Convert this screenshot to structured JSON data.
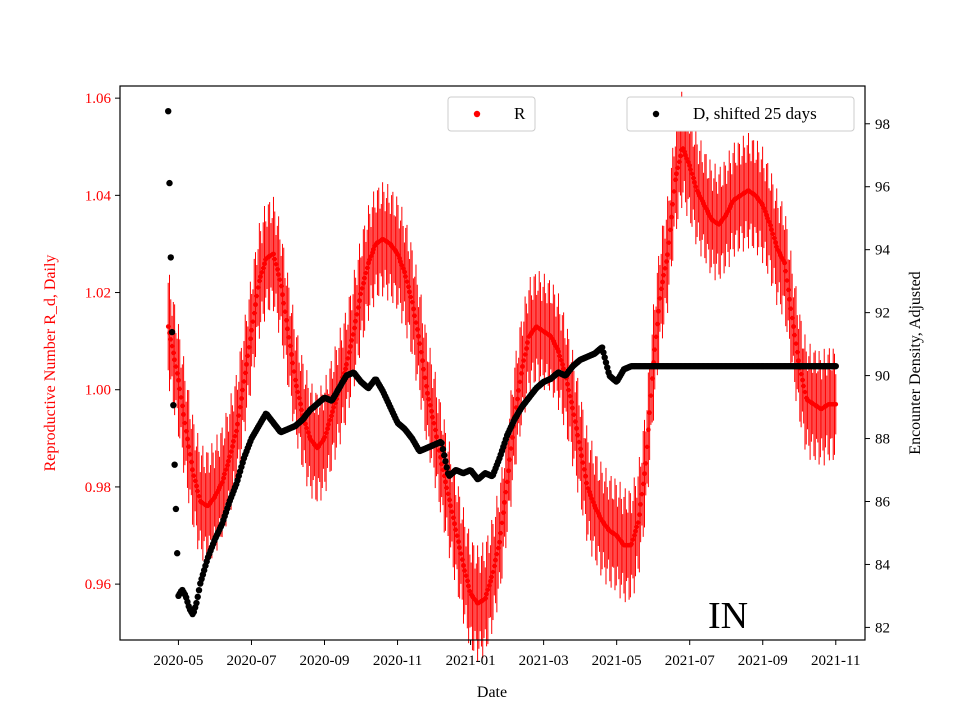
{
  "chart_data": {
    "type": "line",
    "title": "",
    "xlabel": "Date",
    "ylabel_left": "Reproductive Number R_d, Daily",
    "ylabel_right": "Encounter Density, Adjusted",
    "x_ticks": [
      "2020-05",
      "2020-07",
      "2020-09",
      "2020-11",
      "2021-01",
      "2021-03",
      "2021-05",
      "2021-07",
      "2021-09",
      "2021-11"
    ],
    "x_tick_months": [
      1,
      3,
      5,
      7,
      9,
      11,
      13,
      15,
      17,
      19
    ],
    "x_range_months": [
      -0.6,
      19.8
    ],
    "ylim_left": [
      0.9485,
      1.0625
    ],
    "yticks_left": [
      "0.96",
      "0.98",
      "1.00",
      "1.02",
      "1.04",
      "1.06"
    ],
    "ylim_right": [
      81.6,
      99.2
    ],
    "yticks_right": [
      "82",
      "84",
      "86",
      "88",
      "90",
      "92",
      "94",
      "96",
      "98"
    ],
    "legend": [
      {
        "label": "R",
        "color": "#ff0000",
        "position": "top-center"
      },
      {
        "label": "D, shifted 25 days",
        "color": "#000000",
        "position": "top-right"
      }
    ],
    "annotation": "IN",
    "colors": {
      "R": "#ff0000",
      "D": "#000000",
      "left_axis": "#ff0000"
    },
    "series": [
      {
        "name": "R",
        "axis": "left",
        "marker": "dot",
        "error_bar_halfwidth": 0.012,
        "x_months": [
          0.72,
          0.8,
          1.0,
          1.2,
          1.4,
          1.6,
          1.8,
          2.0,
          2.2,
          2.4,
          2.6,
          2.8,
          3.0,
          3.2,
          3.4,
          3.6,
          3.8,
          4.0,
          4.2,
          4.4,
          4.6,
          4.8,
          5.0,
          5.2,
          5.4,
          5.6,
          5.8,
          6.0,
          6.2,
          6.4,
          6.6,
          6.8,
          7.0,
          7.2,
          7.4,
          7.6,
          7.8,
          8.0,
          8.2,
          8.4,
          8.6,
          8.8,
          9.0,
          9.2,
          9.4,
          9.6,
          9.8,
          10.0,
          10.2,
          10.4,
          10.6,
          10.8,
          11.0,
          11.2,
          11.4,
          11.6,
          11.8,
          12.0,
          12.2,
          12.4,
          12.6,
          12.8,
          13.0,
          13.2,
          13.4,
          13.6,
          13.8,
          14.0,
          14.2,
          14.4,
          14.6,
          14.8,
          15.0,
          15.2,
          15.4,
          15.6,
          15.8,
          16.0,
          16.2,
          16.4,
          16.6,
          16.8,
          17.0,
          17.2,
          17.4,
          17.6,
          17.8,
          18.0,
          18.2,
          18.4,
          18.6,
          18.8,
          19.0
        ],
        "values": [
          1.013,
          1.01,
          1.002,
          0.992,
          0.983,
          0.977,
          0.976,
          0.978,
          0.981,
          0.986,
          0.992,
          1.002,
          1.012,
          1.022,
          1.027,
          1.028,
          1.022,
          1.012,
          1.002,
          0.995,
          0.99,
          0.988,
          0.99,
          0.995,
          1.0,
          1.005,
          1.012,
          1.02,
          1.026,
          1.03,
          1.031,
          1.03,
          1.028,
          1.024,
          1.018,
          1.01,
          1.0,
          0.993,
          0.985,
          0.978,
          0.971,
          0.964,
          0.958,
          0.956,
          0.957,
          0.962,
          0.969,
          0.981,
          0.994,
          1.004,
          1.011,
          1.013,
          1.012,
          1.011,
          1.008,
          1.003,
          0.996,
          0.988,
          0.98,
          0.976,
          0.973,
          0.971,
          0.97,
          0.968,
          0.968,
          0.973,
          0.985,
          1.005,
          1.02,
          1.028,
          1.043,
          1.05,
          1.046,
          1.041,
          1.038,
          1.035,
          1.034,
          1.036,
          1.039,
          1.04,
          1.041,
          1.04,
          1.038,
          1.034,
          1.029,
          1.026,
          1.015,
          1.005,
          0.998,
          0.997,
          0.996,
          0.997,
          0.997
        ]
      },
      {
        "name": "D, shifted 25 days",
        "axis": "right",
        "marker": "dot",
        "x_months": [
          0.72,
          0.76,
          0.8,
          0.84,
          0.88,
          0.95,
          1.0,
          1.1,
          1.2,
          1.3,
          1.4,
          1.5,
          1.6,
          1.8,
          2.0,
          2.2,
          2.4,
          2.6,
          2.8,
          3.0,
          3.2,
          3.4,
          3.6,
          3.8,
          4.0,
          4.2,
          4.4,
          4.6,
          4.8,
          5.0,
          5.2,
          5.4,
          5.6,
          5.8,
          6.0,
          6.2,
          6.4,
          6.6,
          6.8,
          7.0,
          7.2,
          7.4,
          7.6,
          7.8,
          8.0,
          8.2,
          8.4,
          8.6,
          8.8,
          9.0,
          9.2,
          9.4,
          9.6,
          9.8,
          10.0,
          10.2,
          10.4,
          10.6,
          10.8,
          11.0,
          11.2,
          11.4,
          11.6,
          11.8,
          12.0,
          12.2,
          12.4,
          12.6,
          12.8,
          13.0,
          13.2,
          13.4,
          13.6,
          13.8,
          14.0,
          14.2,
          14.4,
          14.6,
          14.8,
          15.0,
          15.2,
          15.4,
          15.6,
          15.8,
          16.0,
          16.2,
          16.4,
          16.6,
          16.8,
          17.0,
          17.2,
          17.4,
          17.6,
          17.8,
          18.0,
          18.2,
          18.4,
          18.6,
          18.8,
          19.0
        ],
        "values": [
          98.4,
          95.8,
          93.1,
          90.4,
          87.8,
          85.0,
          83.0,
          83.2,
          83.0,
          82.6,
          82.4,
          82.8,
          83.4,
          84.2,
          84.8,
          85.3,
          86.0,
          86.6,
          87.4,
          88.0,
          88.4,
          88.8,
          88.5,
          88.2,
          88.3,
          88.4,
          88.6,
          88.9,
          89.1,
          89.3,
          89.2,
          89.6,
          90.0,
          90.1,
          89.8,
          89.6,
          89.9,
          89.5,
          89.0,
          88.5,
          88.3,
          88.0,
          87.6,
          87.7,
          87.8,
          87.9,
          86.8,
          87.0,
          86.9,
          87.0,
          86.7,
          86.9,
          86.8,
          87.4,
          88.1,
          88.6,
          89.0,
          89.3,
          89.6,
          89.8,
          89.9,
          90.1,
          90.0,
          90.3,
          90.5,
          90.6,
          90.7,
          90.9,
          90.0,
          89.8,
          90.2,
          90.3,
          90.3,
          90.3,
          90.3,
          90.3,
          90.3,
          90.3,
          90.3,
          90.3,
          90.3,
          90.3,
          90.3,
          90.3,
          90.3,
          90.3,
          90.3,
          90.3,
          90.3,
          90.3,
          90.3,
          90.3,
          90.3,
          90.3,
          90.3,
          90.3,
          90.3,
          90.3,
          90.3,
          90.3
        ]
      }
    ]
  }
}
